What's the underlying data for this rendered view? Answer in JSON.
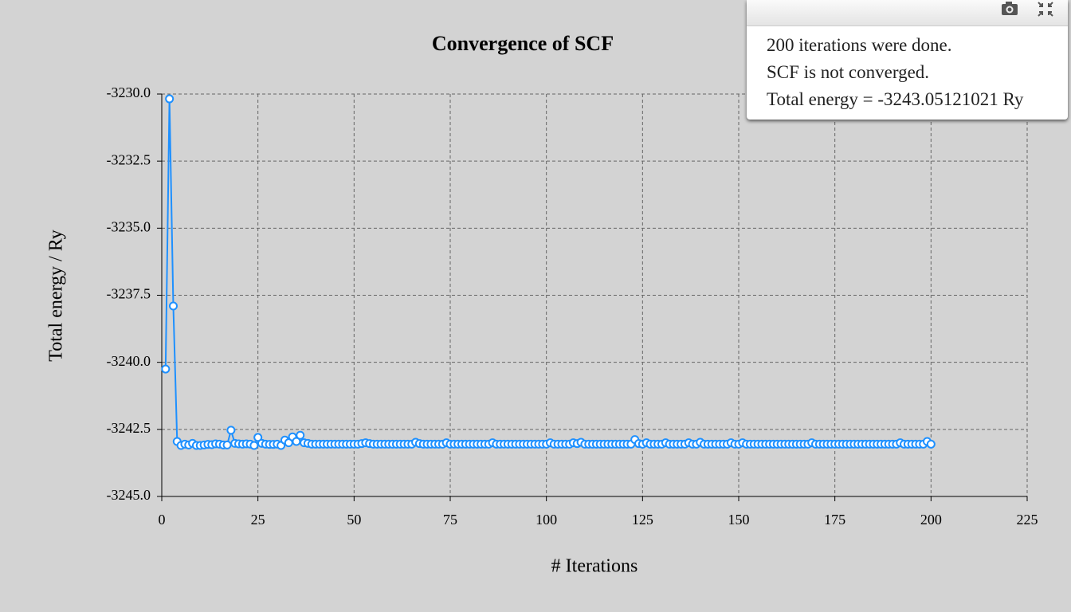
{
  "chart_data": {
    "type": "line",
    "title": "Convergence of SCF",
    "xlabel": "# Iterations",
    "ylabel": "Total energy / Ry",
    "color": "#1e90ff",
    "grid": true,
    "xlim": [
      0,
      225
    ],
    "xticks": [
      0,
      25,
      50,
      75,
      100,
      125,
      150,
      175,
      200,
      225
    ],
    "ylim": [
      -3245,
      -3230
    ],
    "yticks": [
      {
        "value": -3245,
        "label": "-3245.0"
      },
      {
        "value": -3242.5,
        "label": "-3242.5"
      },
      {
        "value": -3240,
        "label": "-3240.0"
      },
      {
        "value": -3237.5,
        "label": "-3237.5"
      },
      {
        "value": -3235,
        "label": "-3235.0"
      },
      {
        "value": -3232.5,
        "label": "-3232.5"
      },
      {
        "value": -3230,
        "label": "-3230.0"
      }
    ],
    "x": [
      1,
      2,
      3,
      4,
      5,
      6,
      7,
      8,
      9,
      10,
      11,
      12,
      13,
      14,
      15,
      16,
      17,
      18,
      19,
      20,
      21,
      22,
      23,
      24,
      25,
      26,
      27,
      28,
      29,
      30,
      31,
      32,
      33,
      34,
      35,
      36,
      37,
      38,
      39,
      40,
      41,
      42,
      43,
      44,
      45,
      46,
      47,
      48,
      49,
      50,
      51,
      52,
      53,
      54,
      55,
      56,
      57,
      58,
      59,
      60,
      61,
      62,
      63,
      64,
      65,
      66,
      67,
      68,
      69,
      70,
      71,
      72,
      73,
      74,
      75,
      76,
      77,
      78,
      79,
      80,
      81,
      82,
      83,
      84,
      85,
      86,
      87,
      88,
      89,
      90,
      91,
      92,
      93,
      94,
      95,
      96,
      97,
      98,
      99,
      100,
      101,
      102,
      103,
      104,
      105,
      106,
      107,
      108,
      109,
      110,
      111,
      112,
      113,
      114,
      115,
      116,
      117,
      118,
      119,
      120,
      121,
      122,
      123,
      124,
      125,
      126,
      127,
      128,
      129,
      130,
      131,
      132,
      133,
      134,
      135,
      136,
      137,
      138,
      139,
      140,
      141,
      142,
      143,
      144,
      145,
      146,
      147,
      148,
      149,
      150,
      151,
      152,
      153,
      154,
      155,
      156,
      157,
      158,
      159,
      160,
      161,
      162,
      163,
      164,
      165,
      166,
      167,
      168,
      169,
      170,
      171,
      172,
      173,
      174,
      175,
      176,
      177,
      178,
      179,
      180,
      181,
      182,
      183,
      184,
      185,
      186,
      187,
      188,
      189,
      190,
      191,
      192,
      193,
      194,
      195,
      196,
      197,
      198,
      199,
      200
    ],
    "values": [
      -3240.25,
      -3230.18,
      -3237.9,
      -3242.95,
      -3243.1,
      -3243.05,
      -3243.08,
      -3243.02,
      -3243.1,
      -3243.1,
      -3243.08,
      -3243.06,
      -3243.07,
      -3243.04,
      -3243.05,
      -3243.08,
      -3243.08,
      -3242.53,
      -3243.02,
      -3243.04,
      -3243.05,
      -3243.04,
      -3243.05,
      -3243.1,
      -3242.8,
      -3243.02,
      -3243.05,
      -3243.06,
      -3243.06,
      -3243.05,
      -3243.1,
      -3242.9,
      -3243.0,
      -3242.78,
      -3242.95,
      -3242.72,
      -3243.0,
      -3243.02,
      -3243.05,
      -3243.05,
      -3243.05,
      -3243.05,
      -3243.05,
      -3243.05,
      -3243.05,
      -3243.05,
      -3243.05,
      -3243.05,
      -3243.05,
      -3243.05,
      -3243.05,
      -3243.03,
      -3243.0,
      -3243.03,
      -3243.05,
      -3243.05,
      -3243.05,
      -3243.05,
      -3243.05,
      -3243.05,
      -3243.05,
      -3243.05,
      -3243.05,
      -3243.05,
      -3243.05,
      -3242.98,
      -3243.03,
      -3243.05,
      -3243.05,
      -3243.05,
      -3243.05,
      -3243.05,
      -3243.05,
      -3243.0,
      -3243.05,
      -3243.05,
      -3243.05,
      -3243.05,
      -3243.05,
      -3243.05,
      -3243.05,
      -3243.05,
      -3243.05,
      -3243.05,
      -3243.05,
      -3243.0,
      -3243.05,
      -3243.05,
      -3243.05,
      -3243.05,
      -3243.05,
      -3243.05,
      -3243.05,
      -3243.05,
      -3243.05,
      -3243.05,
      -3243.05,
      -3243.05,
      -3243.05,
      -3243.05,
      -3243.0,
      -3243.05,
      -3243.05,
      -3243.05,
      -3243.05,
      -3243.05,
      -3243.0,
      -3243.03,
      -3242.98,
      -3243.05,
      -3243.05,
      -3243.05,
      -3243.05,
      -3243.05,
      -3243.05,
      -3243.05,
      -3243.05,
      -3243.05,
      -3243.05,
      -3243.05,
      -3243.05,
      -3243.05,
      -3242.88,
      -3243.03,
      -3243.05,
      -3243.0,
      -3243.05,
      -3243.05,
      -3243.05,
      -3243.05,
      -3243.0,
      -3243.05,
      -3243.05,
      -3243.05,
      -3243.05,
      -3243.05,
      -3243.0,
      -3243.05,
      -3243.05,
      -3242.98,
      -3243.05,
      -3243.05,
      -3243.05,
      -3243.05,
      -3243.05,
      -3243.05,
      -3243.05,
      -3243.0,
      -3243.05,
      -3243.05,
      -3243.0,
      -3243.05,
      -3243.05,
      -3243.05,
      -3243.05,
      -3243.05,
      -3243.05,
      -3243.05,
      -3243.05,
      -3243.05,
      -3243.05,
      -3243.05,
      -3243.05,
      -3243.05,
      -3243.05,
      -3243.05,
      -3243.05,
      -3243.05,
      -3243.0,
      -3243.05,
      -3243.05,
      -3243.05,
      -3243.05,
      -3243.05,
      -3243.05,
      -3243.05,
      -3243.05,
      -3243.05,
      -3243.05,
      -3243.05,
      -3243.05,
      -3243.05,
      -3243.05,
      -3243.05,
      -3243.05,
      -3243.05,
      -3243.05,
      -3243.05,
      -3243.05,
      -3243.05,
      -3243.05,
      -3243.0,
      -3243.05,
      -3243.05,
      -3243.05,
      -3243.05,
      -3243.05,
      -3243.05,
      -3242.95,
      -3243.05
    ]
  },
  "notice": {
    "lines": [
      "200 iterations were done.",
      "SCF is not converged.",
      "Total energy = -3243.05121021 Ry"
    ]
  }
}
